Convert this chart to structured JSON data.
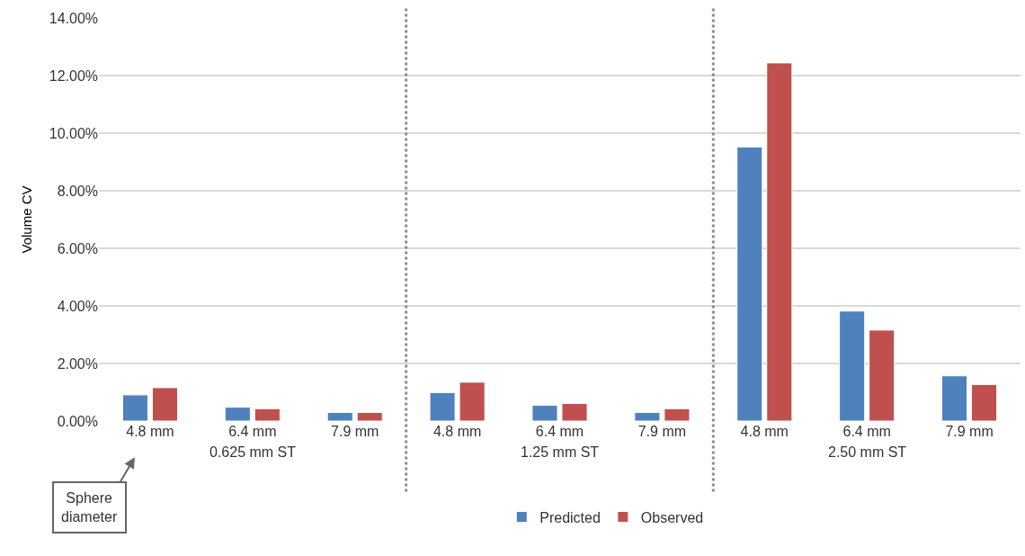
{
  "chart_data": {
    "type": "bar",
    "ylabel": "Volume CV",
    "categories": [
      "4.8 mm",
      "6.4 mm",
      "7.9 mm",
      "4.8 mm",
      "6.4 mm",
      "7.9 mm",
      "4.8 mm",
      "6.4 mm",
      "7.9 mm"
    ],
    "series": [
      {
        "name": "Predicted",
        "color": "#4f81bd",
        "values": [
          0.91,
          0.48,
          0.3,
          0.99,
          0.55,
          0.3,
          9.52,
          3.82,
          1.57
        ]
      },
      {
        "name": "Observed",
        "color": "#c0504d",
        "values": [
          1.16,
          0.43,
          0.3,
          1.35,
          0.61,
          0.43,
          12.44,
          3.16,
          1.27
        ]
      }
    ],
    "ylim": [
      0,
      14
    ],
    "yticks": [
      {
        "value": 0,
        "label": "0.00%"
      },
      {
        "value": 2,
        "label": "2.00%"
      },
      {
        "value": 4,
        "label": "4.00%"
      },
      {
        "value": 6,
        "label": "6.00%"
      },
      {
        "value": 8,
        "label": "8.00%"
      },
      {
        "value": 10,
        "label": "10.00%"
      },
      {
        "value": 12,
        "label": "12.00%"
      },
      {
        "value": 14,
        "label": "14.00%"
      }
    ],
    "grid": "y",
    "legend": "bottom",
    "annotations": [
      "0.625 mm ST",
      "1.25 mm ST",
      "2.50 mm ST",
      "Sphere diameter"
    ]
  }
}
